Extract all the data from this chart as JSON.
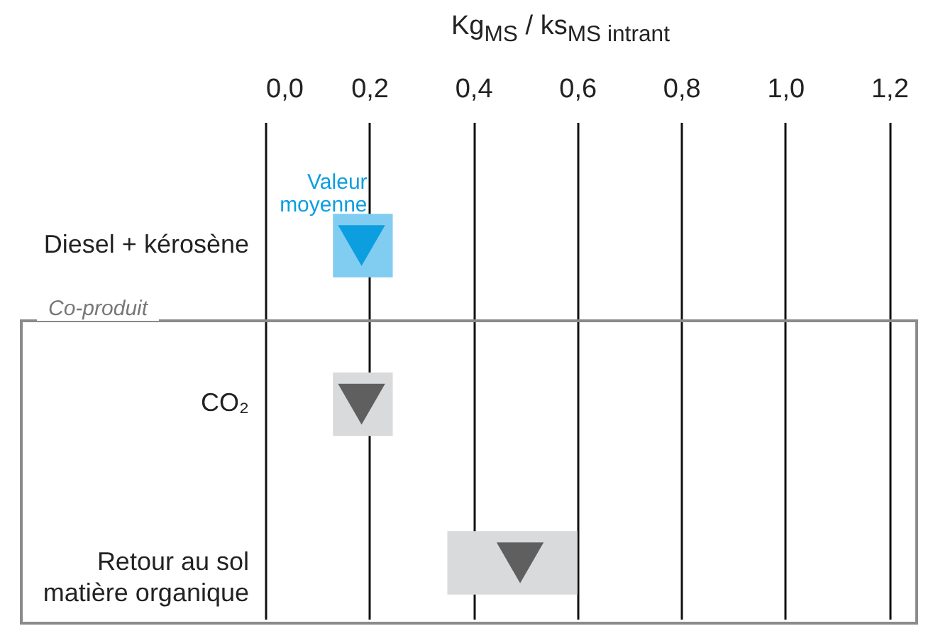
{
  "chart_data": {
    "type": "bar",
    "orientation": "horizontal",
    "xlabel": "Kg$_{MS}$ / ks$_{MS intrant}$",
    "categories": [
      "Diesel + kérosène",
      "CO₂",
      "Retour au sol matière organique"
    ],
    "series": [
      {
        "type": "bar",
        "colors": [
          "#80cdf1",
          "#d9dadb",
          "#d9dadb"
        ],
        "base": [
          0.13,
          0.13,
          0.35
        ],
        "values": [
          0.115,
          0.115,
          0.25
        ]
      },
      {
        "type": "scatter",
        "name": "Valeur moyenne",
        "marker": "triangle",
        "colors": [
          "#0d9ee0",
          "#5f5f5f",
          "#5f5f5f"
        ],
        "values": [
          0.185,
          0.185,
          0.49
        ]
      }
    ],
    "xlim": [
      0,
      1.25
    ],
    "xticks": [
      {
        "value": 0,
        "label": "0,0"
      },
      {
        "value": 0.2,
        "label": "0,2"
      },
      {
        "value": 0.4,
        "label": "0,4"
      },
      {
        "value": 0.6,
        "label": "0,6"
      },
      {
        "value": 0.8,
        "label": "0,8"
      },
      {
        "value": 1.0,
        "label": "1,0"
      },
      {
        "value": 1.2,
        "label": "1,2"
      }
    ],
    "grid": "x",
    "annotations": [
      "Co-produit"
    ]
  }
}
